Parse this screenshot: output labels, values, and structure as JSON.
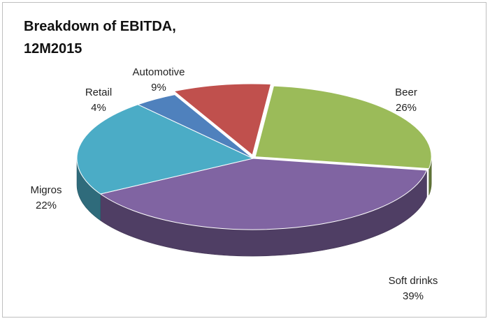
{
  "chart_data": {
    "type": "pie",
    "style": "3d-exploded-tilt",
    "title_lines": [
      "Breakdown of EBITDA,",
      "12M2015"
    ],
    "slices": [
      {
        "label": "Beer",
        "value": 26,
        "display": "26%",
        "color": "#9bbb59"
      },
      {
        "label": "Soft drinks",
        "value": 39,
        "display": "39%",
        "color": "#8064a2"
      },
      {
        "label": "Migros",
        "value": 22,
        "display": "22%",
        "color": "#4bacc6"
      },
      {
        "label": "Retail",
        "value": 4,
        "display": "4%",
        "color": "#4f81bd"
      },
      {
        "label": "Automotive",
        "value": 9,
        "display": "9%",
        "color": "#c0504d"
      }
    ]
  }
}
